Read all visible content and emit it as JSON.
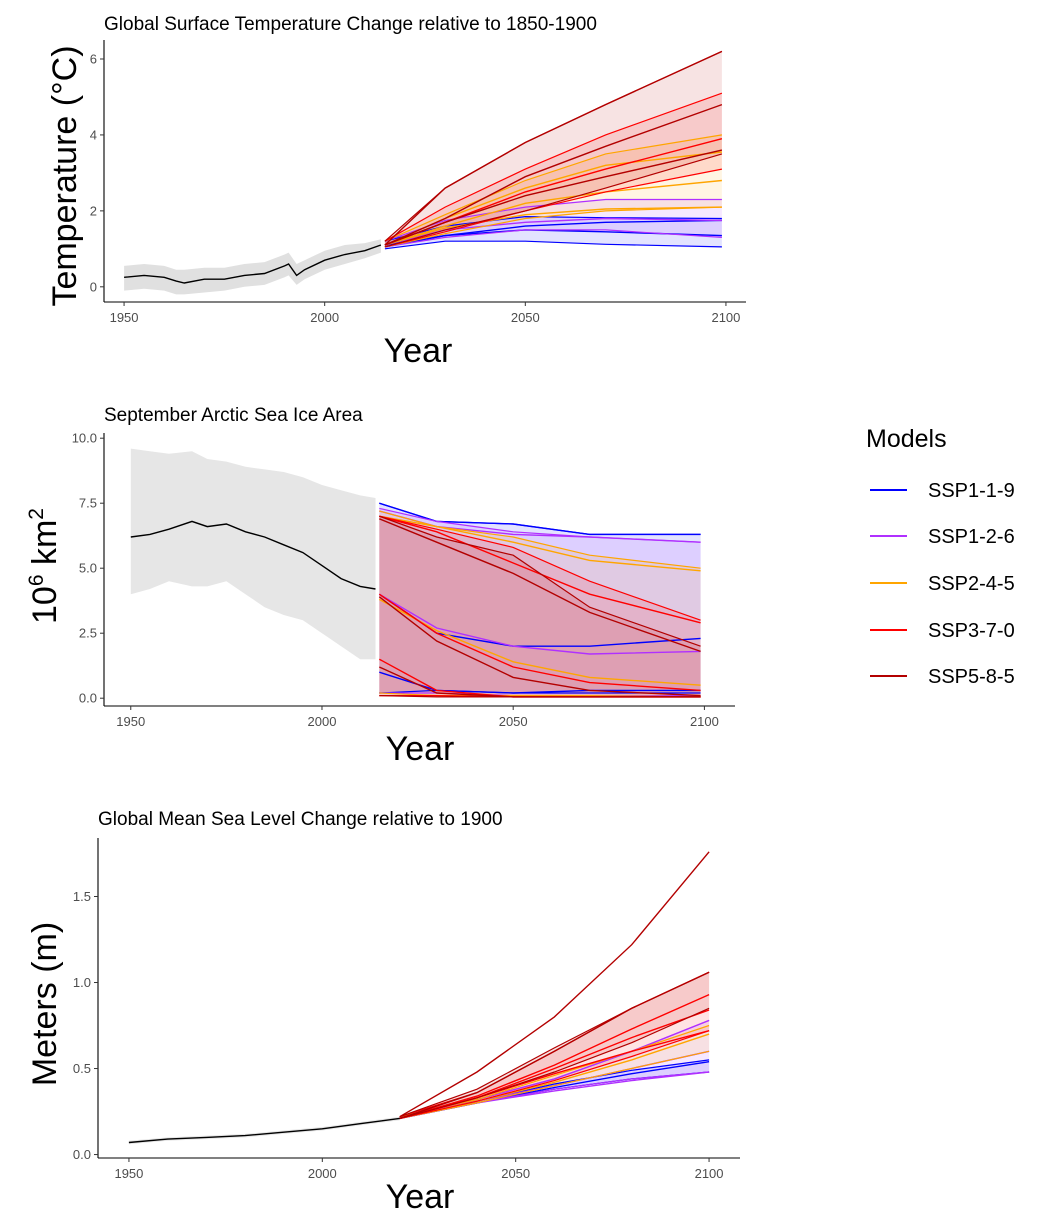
{
  "legend": {
    "title": "Models",
    "items": [
      {
        "label": "SSP1-1-9",
        "color": "#0000ff"
      },
      {
        "label": "SSP1-2-6",
        "color": "#b030ff"
      },
      {
        "label": "SSP2-4-5",
        "color": "#ffa500"
      },
      {
        "label": "SSP3-7-0",
        "color": "#ff0000"
      },
      {
        "label": "SSP5-8-5",
        "color": "#b30000"
      }
    ]
  },
  "chart_data": [
    {
      "type": "line",
      "title": "Global Surface Temperature Change relative to 1850-1900",
      "xlabel": "Year",
      "ylabel": "Temperature (°C)",
      "xlim": [
        1945,
        2105
      ],
      "ylim": [
        -0.4,
        6.5
      ],
      "xticks": [
        1950,
        2000,
        2050,
        2100
      ],
      "yticks": [
        0,
        2,
        4,
        6
      ],
      "xtick_labels": [
        "1950",
        "2000",
        "2050",
        "2100"
      ],
      "ytick_labels": [
        "0",
        "2",
        "4",
        "6"
      ],
      "grid": false,
      "historical": {
        "name": "",
        "color": "#000000",
        "band_color": "#e0e0e0",
        "x": [
          1950,
          1955,
          1960,
          1963,
          1965,
          1970,
          1975,
          1980,
          1985,
          1990,
          1991,
          1993,
          1995,
          2000,
          2005,
          2010,
          2014
        ],
        "y": [
          0.25,
          0.3,
          0.25,
          0.15,
          0.1,
          0.2,
          0.2,
          0.3,
          0.35,
          0.55,
          0.6,
          0.3,
          0.45,
          0.7,
          0.85,
          0.95,
          1.1
        ],
        "band_lower": [
          -0.1,
          -0.05,
          -0.1,
          -0.2,
          -0.2,
          -0.15,
          -0.1,
          0.0,
          0.05,
          0.25,
          0.3,
          0.05,
          0.2,
          0.45,
          0.6,
          0.75,
          0.9
        ],
        "band_upper": [
          0.55,
          0.6,
          0.55,
          0.45,
          0.45,
          0.5,
          0.5,
          0.6,
          0.65,
          0.85,
          0.9,
          0.6,
          0.7,
          0.95,
          1.1,
          1.15,
          1.25
        ]
      },
      "scenarios": [
        {
          "name": "SSP1-1-9",
          "color": "#0000ff",
          "x": [
            2015,
            2030,
            2050,
            2070,
            2099
          ],
          "band_lower": [
            1.0,
            1.2,
            1.2,
            1.12,
            1.05
          ],
          "band_upper": [
            1.2,
            1.6,
            1.85,
            1.82,
            1.8
          ],
          "lines": [
            [
              1.1,
              1.35,
              1.5,
              1.45,
              1.35
            ],
            [
              1.05,
              1.35,
              1.6,
              1.7,
              1.75
            ]
          ]
        },
        {
          "name": "SSP1-2-6",
          "color": "#b030ff",
          "x": [
            2015,
            2030,
            2050,
            2070,
            2099
          ],
          "band_lower": [
            1.05,
            1.3,
            1.5,
            1.5,
            1.3
          ],
          "band_upper": [
            1.2,
            1.75,
            2.1,
            2.3,
            2.3
          ],
          "lines": [
            [
              1.1,
              1.5,
              1.7,
              1.8,
              1.75
            ]
          ]
        },
        {
          "name": "SSP2-4-5",
          "color": "#ffa500",
          "x": [
            2015,
            2030,
            2050,
            2070,
            2099
          ],
          "band_lower": [
            1.05,
            1.4,
            1.8,
            2.0,
            2.1
          ],
          "band_upper": [
            1.2,
            1.9,
            2.8,
            3.5,
            4.0
          ],
          "lines": [
            [
              1.1,
              1.6,
              2.2,
              2.5,
              2.8
            ],
            [
              1.1,
              1.55,
              1.9,
              2.05,
              2.1
            ],
            [
              1.1,
              1.8,
              2.6,
              3.2,
              3.55
            ]
          ]
        },
        {
          "name": "SSP3-7-0",
          "color": "#ff0000",
          "x": [
            2015,
            2030,
            2050,
            2070,
            2099
          ],
          "band_lower": [
            1.05,
            1.45,
            2.0,
            2.5,
            3.1
          ],
          "band_upper": [
            1.2,
            2.1,
            3.1,
            4.0,
            5.1
          ],
          "lines": [
            [
              1.1,
              1.7,
              2.5,
              3.1,
              3.9
            ]
          ]
        },
        {
          "name": "SSP5-8-5",
          "color": "#b30000",
          "x": [
            2015,
            2030,
            2050,
            2070,
            2099
          ],
          "band_lower": [
            1.05,
            1.5,
            2.0,
            2.6,
            3.5
          ],
          "band_upper": [
            1.2,
            2.6,
            3.8,
            4.8,
            6.2
          ],
          "lines": [
            [
              1.1,
              1.8,
              2.9,
              3.7,
              4.8
            ],
            [
              1.1,
              1.7,
              2.4,
              2.9,
              3.6
            ],
            [
              1.1,
              2.6,
              3.8,
              4.8,
              6.2
            ]
          ]
        }
      ]
    },
    {
      "type": "line",
      "title": "September Arctic Sea Ice Area",
      "xlabel": "Year",
      "ylabel": "10^6 km^2",
      "xlim": [
        1943,
        2108
      ],
      "ylim": [
        -0.3,
        10.2
      ],
      "xticks": [
        1950,
        2000,
        2050,
        2100
      ],
      "yticks": [
        0.0,
        2.5,
        5.0,
        7.5,
        10.0
      ],
      "xtick_labels": [
        "1950",
        "2000",
        "2050",
        "2100"
      ],
      "ytick_labels": [
        "0.0",
        "2.5",
        "5.0",
        "7.5",
        "10.0"
      ],
      "grid": false,
      "historical": {
        "name": "",
        "color": "#000000",
        "band_color": "#e6e6e6",
        "x": [
          1950,
          1955,
          1960,
          1966,
          1970,
          1975,
          1980,
          1985,
          1990,
          1995,
          2000,
          2005,
          2010,
          2014
        ],
        "y": [
          6.2,
          6.3,
          6.5,
          6.8,
          6.6,
          6.7,
          6.4,
          6.2,
          5.9,
          5.6,
          5.1,
          4.6,
          4.3,
          4.2
        ],
        "band_lower": [
          4.0,
          4.2,
          4.5,
          4.3,
          4.3,
          4.5,
          4.0,
          3.5,
          3.2,
          3.0,
          2.5,
          2.0,
          1.5,
          1.5
        ],
        "band_upper": [
          9.6,
          9.5,
          9.4,
          9.5,
          9.2,
          9.1,
          8.9,
          8.8,
          8.7,
          8.5,
          8.2,
          8.0,
          7.8,
          7.7
        ]
      },
      "scenarios": [
        {
          "name": "SSP1-1-9",
          "color": "#0000ff",
          "x": [
            2015,
            2030,
            2050,
            2070,
            2099
          ],
          "band_lower": [
            0.2,
            0.3,
            0.2,
            0.2,
            0.2
          ],
          "band_upper": [
            7.5,
            6.8,
            6.7,
            6.3,
            6.3
          ],
          "lines": [
            [
              7.5,
              6.8,
              6.7,
              6.3,
              6.3
            ],
            [
              4.0,
              2.5,
              2.0,
              2.0,
              2.3
            ],
            [
              1.0,
              0.3,
              0.2,
              0.3,
              0.3
            ]
          ]
        },
        {
          "name": "SSP1-2-6",
          "color": "#b030ff",
          "x": [
            2015,
            2030,
            2050,
            2070,
            2099
          ],
          "band_lower": [
            0.2,
            0.2,
            0.1,
            0.1,
            0.1
          ],
          "band_upper": [
            7.3,
            6.8,
            6.4,
            6.2,
            6.0
          ],
          "lines": [
            [
              7.2,
              6.6,
              6.3,
              6.2,
              6.0
            ],
            [
              4.0,
              2.7,
              2.0,
              1.7,
              1.8
            ]
          ]
        },
        {
          "name": "SSP2-4-5",
          "color": "#ffa500",
          "x": [
            2015,
            2030,
            2050,
            2070,
            2099
          ],
          "band_lower": [
            0.2,
            0.1,
            0.1,
            0.1,
            0.05
          ],
          "band_upper": [
            7.2,
            6.6,
            6.2,
            5.5,
            5.0
          ],
          "lines": [
            [
              7.0,
              6.6,
              6.0,
              5.3,
              4.9
            ],
            [
              3.8,
              2.6,
              1.4,
              0.8,
              0.5
            ]
          ]
        },
        {
          "name": "SSP3-7-0",
          "color": "#ff0000",
          "x": [
            2015,
            2030,
            2050,
            2070,
            2099
          ],
          "band_lower": [
            0.1,
            0.1,
            0.05,
            0.05,
            0.05
          ],
          "band_upper": [
            7.0,
            6.5,
            5.8,
            4.5,
            3.0
          ],
          "lines": [
            [
              7.0,
              6.4,
              5.2,
              4.0,
              2.9
            ],
            [
              4.0,
              2.5,
              1.2,
              0.6,
              0.3
            ],
            [
              1.5,
              0.3,
              0.05,
              0.05,
              0.05
            ]
          ]
        },
        {
          "name": "SSP5-8-5",
          "color": "#b30000",
          "x": [
            2015,
            2030,
            2050,
            2070,
            2099
          ],
          "band_lower": [
            0.1,
            0.05,
            0.05,
            0.05,
            0.05
          ],
          "band_upper": [
            7.0,
            6.2,
            5.5,
            3.5,
            2.0
          ],
          "lines": [
            [
              6.9,
              6.0,
              4.8,
              3.3,
              1.8
            ],
            [
              3.9,
              2.2,
              0.8,
              0.3,
              0.1
            ],
            [
              1.2,
              0.2,
              0.05,
              0.05,
              0.05
            ]
          ]
        }
      ]
    },
    {
      "type": "line",
      "title": "Global Mean Sea Level Change relative to 1900",
      "xlabel": "Year",
      "ylabel": "Meters (m)",
      "xlim": [
        1942,
        2108
      ],
      "ylim": [
        -0.02,
        1.84
      ],
      "xticks": [
        1950,
        2000,
        2050,
        2100
      ],
      "yticks": [
        0.0,
        0.5,
        1.0,
        1.5
      ],
      "xtick_labels": [
        "1950",
        "2000",
        "2050",
        "2100"
      ],
      "ytick_labels": [
        "0.0",
        "0.5",
        "1.0",
        "1.5"
      ],
      "grid": false,
      "historical": {
        "name": "",
        "color": "#000000",
        "band_color": "#e6e6e6",
        "x": [
          1950,
          1960,
          1970,
          1980,
          1990,
          2000,
          2010,
          2020
        ],
        "y": [
          0.07,
          0.09,
          0.1,
          0.11,
          0.13,
          0.15,
          0.18,
          0.21
        ],
        "band_lower": [
          0.06,
          0.08,
          0.09,
          0.1,
          0.12,
          0.14,
          0.17,
          0.2
        ],
        "band_upper": [
          0.08,
          0.1,
          0.11,
          0.12,
          0.14,
          0.16,
          0.19,
          0.22
        ]
      },
      "scenarios": [
        {
          "name": "SSP1-1-9",
          "color": "#0000ff",
          "x": [
            2020,
            2040,
            2060,
            2080,
            2100
          ],
          "band_lower": [
            0.21,
            0.3,
            0.38,
            0.44,
            0.48
          ],
          "band_upper": [
            0.22,
            0.31,
            0.41,
            0.49,
            0.55
          ],
          "lines": [
            [
              0.21,
              0.3,
              0.39,
              0.47,
              0.54
            ]
          ]
        },
        {
          "name": "SSP1-2-6",
          "color": "#b030ff",
          "x": [
            2020,
            2040,
            2060,
            2080,
            2100
          ],
          "band_lower": [
            0.21,
            0.3,
            0.38,
            0.44,
            0.48
          ],
          "band_upper": [
            0.22,
            0.32,
            0.44,
            0.6,
            0.78
          ],
          "lines": [
            [
              0.21,
              0.31,
              0.4,
              0.5,
              0.6
            ],
            [
              0.21,
              0.3,
              0.37,
              0.43,
              0.48
            ],
            [
              0.21,
              0.32,
              0.44,
              0.6,
              0.78
            ]
          ]
        },
        {
          "name": "SSP2-4-5",
          "color": "#ffa500",
          "x": [
            2020,
            2040,
            2060,
            2080,
            2100
          ],
          "band_lower": [
            0.21,
            0.3,
            0.4,
            0.5,
            0.6
          ],
          "band_upper": [
            0.22,
            0.32,
            0.46,
            0.6,
            0.75
          ],
          "lines": [
            [
              0.21,
              0.31,
              0.42,
              0.55,
              0.7
            ]
          ]
        },
        {
          "name": "SSP3-7-0",
          "color": "#ff0000",
          "x": [
            2020,
            2040,
            2060,
            2080,
            2100
          ],
          "band_lower": [
            0.21,
            0.31,
            0.43,
            0.57,
            0.72
          ],
          "band_upper": [
            0.22,
            0.36,
            0.6,
            0.85,
            1.06
          ],
          "lines": [
            [
              0.21,
              0.33,
              0.5,
              0.68,
              0.84
            ],
            [
              0.21,
              0.33,
              0.47,
              0.6,
              0.72
            ],
            [
              0.21,
              0.34,
              0.52,
              0.73,
              0.93
            ]
          ]
        },
        {
          "name": "SSP5-8-5",
          "color": "#b30000",
          "x": [
            2020,
            2040,
            2060,
            2080,
            2100
          ],
          "band_lower": [
            0.21,
            0.33,
            0.48,
            0.65,
            0.85
          ],
          "band_upper": [
            0.22,
            0.38,
            0.62,
            0.85,
            1.06
          ],
          "lines": [
            [
              0.22,
              0.48,
              0.8,
              1.22,
              1.76
            ],
            [
              0.21,
              0.36,
              0.6,
              0.85,
              1.06
            ]
          ]
        }
      ]
    }
  ]
}
